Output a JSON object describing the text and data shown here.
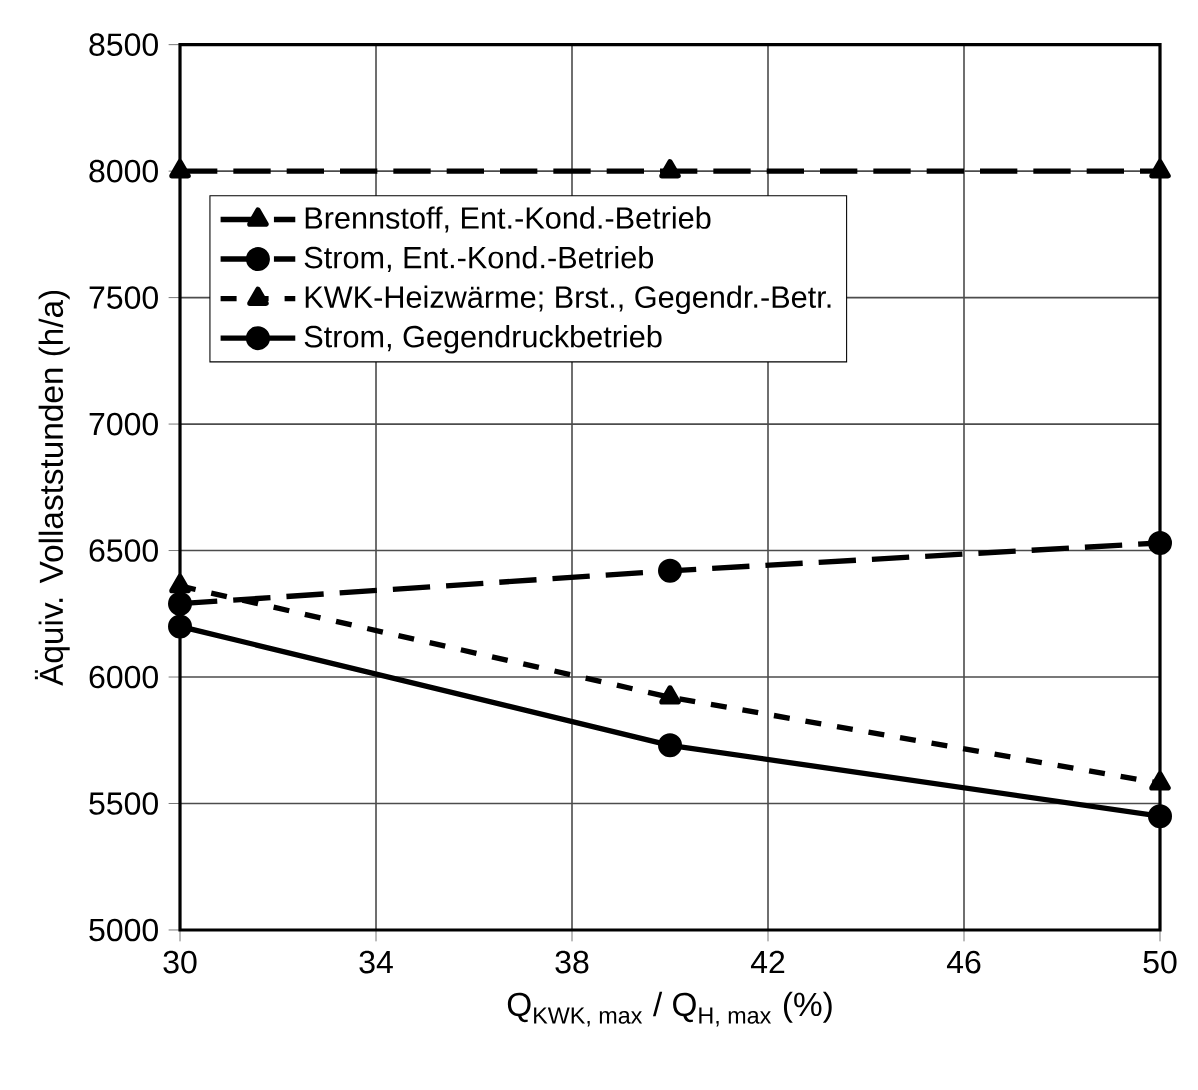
{
  "chart_data": {
    "type": "line",
    "xlabel": "\\text{Q}_{\\text{KWK, max}}\\text{ / Q}_{\\text{H, max}}\\text{ (\\%)}",
    "ylabel": "Äquiv. Vollaststunden (h/a)",
    "x": [
      30,
      40,
      50
    ],
    "series": [
      {
        "name": "Brennstoff, Ent.-Kond.-Betrieb",
        "color": "#000000",
        "values": [
          8000,
          8000,
          8000
        ],
        "marker": "triangle",
        "line_style": "dashed"
      },
      {
        "name": "Strom, Ent.-Kond.-Betrieb",
        "color": "#000000",
        "values": [
          6290,
          6420,
          6530
        ],
        "marker": "circle",
        "line_style": "dashed"
      },
      {
        "name": "KWK-Heizwärme;  Brst., Gegendr.-Betr.",
        "color": "#000000",
        "values": [
          6360,
          5920,
          5580
        ],
        "marker": "triangle",
        "line_style": "dotted"
      },
      {
        "name": "Strom, Gegendruckbetrieb",
        "color": "#000000",
        "values": [
          6200,
          5730,
          5450
        ],
        "marker": "circle",
        "line_style": "solid"
      }
    ],
    "xlim": [
      30,
      50
    ],
    "xticks": [
      30,
      34,
      38,
      42,
      46,
      50
    ],
    "ylim": [
      5000,
      8500
    ],
    "yticks": [
      5000,
      5500,
      6000,
      6500,
      7000,
      7500,
      8000,
      8500
    ],
    "grid": true,
    "legend": "top left"
  }
}
